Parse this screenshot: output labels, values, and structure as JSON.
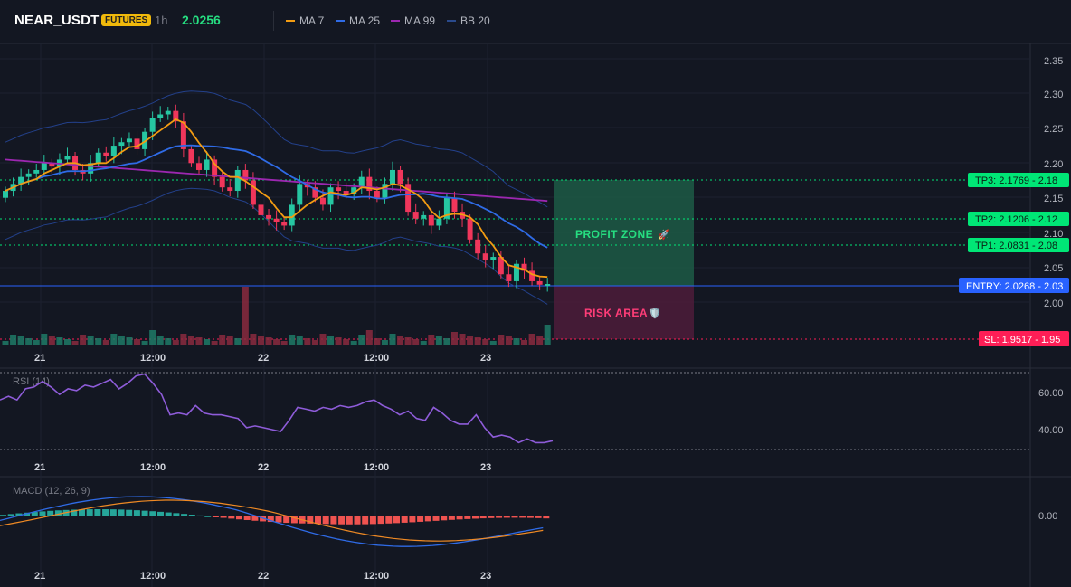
{
  "header": {
    "symbol": "NEAR_USDT",
    "badge": "FUTURES",
    "interval": "1h",
    "last_price": "2.0256",
    "indicators": [
      {
        "label": "MA 7",
        "color": "#f39c12"
      },
      {
        "label": "MA 25",
        "color": "#2f6be6"
      },
      {
        "label": "MA 99",
        "color": "#9c27b0"
      },
      {
        "label": "BB 20",
        "color": "#2a4a8c"
      }
    ]
  },
  "colors": {
    "up": "#26c6a2",
    "down": "#f0365b",
    "profit_zone": "#1e5e45",
    "risk_area": "#5a1f3e",
    "entry": "#2962ff",
    "tp": "#00e676",
    "sl": "#ff1e56"
  },
  "price_axis": {
    "ticks": [
      "2.35",
      "2.30",
      "2.25",
      "2.20",
      "2.15",
      "2.10",
      "2.05",
      "2.00"
    ]
  },
  "time_axis": {
    "labels": [
      "21",
      "12:00",
      "22",
      "12:00",
      "23"
    ]
  },
  "trade_levels": {
    "tp3": "TP3: 2.1769 - 2.18",
    "tp2": "TP2: 2.1206 - 2.12",
    "tp1": "TP1: 2.0831 - 2.08",
    "entry": "ENTRY: 2.0268 - 2.03",
    "sl": "SL: 1.9517 - 1.95"
  },
  "zones": {
    "profit_label": "PROFIT ZONE",
    "profit_icon": "rocket-icon",
    "risk_label": "RISK AREA",
    "risk_icon": "shield-icon"
  },
  "rsi": {
    "label": "RSI (14)",
    "ticks": [
      "60.00",
      "40.00"
    ],
    "values": [
      56,
      58,
      56,
      62,
      63,
      66,
      63,
      59,
      62,
      61,
      64,
      63,
      65,
      67,
      62,
      65,
      69,
      70,
      65,
      59,
      48,
      49,
      48,
      53,
      49,
      48,
      48,
      47,
      46,
      41,
      42,
      41,
      40,
      39,
      45,
      52,
      51,
      50,
      52,
      51,
      53,
      52,
      53,
      55,
      56,
      53,
      51,
      48,
      50,
      46,
      45,
      52,
      49,
      45,
      43,
      43,
      48,
      41,
      36,
      37,
      36,
      33,
      35,
      33,
      33,
      34
    ]
  },
  "macd": {
    "label": "MACD (12, 26, 9)",
    "ticks": [
      "0.00"
    ]
  }
}
